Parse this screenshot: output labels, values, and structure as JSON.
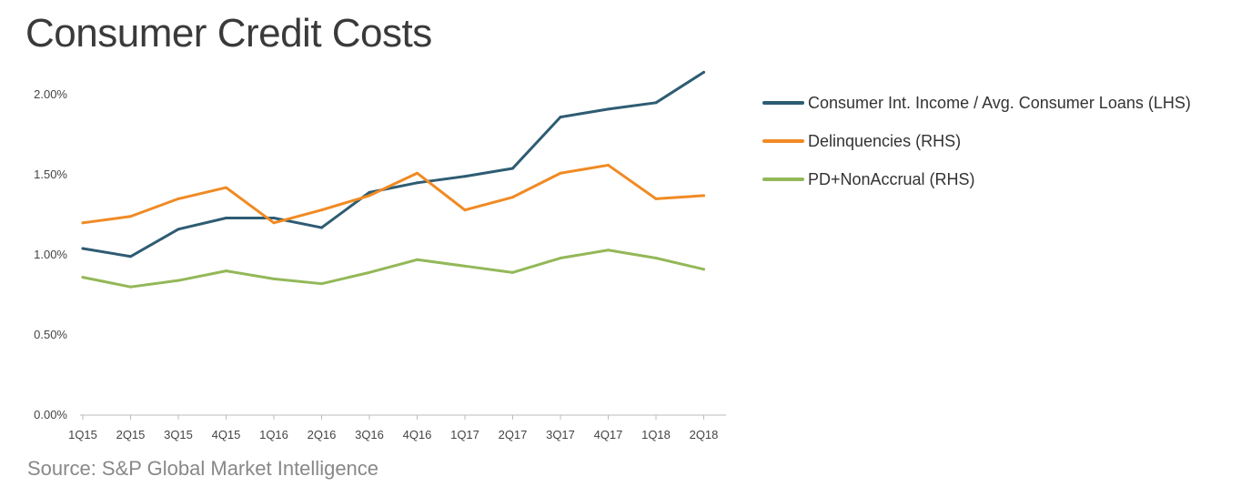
{
  "title": "Consumer Credit Costs",
  "source": "Source: S&P Global Market Intelligence",
  "chart_data": {
    "type": "line",
    "categories": [
      "1Q15",
      "2Q15",
      "3Q15",
      "4Q15",
      "1Q16",
      "2Q16",
      "3Q16",
      "4Q16",
      "1Q17",
      "2Q17",
      "3Q17",
      "4Q17",
      "1Q18",
      "2Q18"
    ],
    "yticks": [
      "0.00%",
      "0.50%",
      "1.00%",
      "1.50%",
      "2.00%"
    ],
    "ylim": [
      0,
      2.2
    ],
    "grid": false,
    "legend_position": "right",
    "series": [
      {
        "name": "Consumer Int. Income / Avg. Consumer Loans (LHS)",
        "color": "#2e5c73",
        "values": [
          1.04,
          0.99,
          1.16,
          1.23,
          1.23,
          1.17,
          1.39,
          1.45,
          1.49,
          1.54,
          1.86,
          1.91,
          1.95,
          2.14
        ]
      },
      {
        "name": "Delinquencies (RHS)",
        "color": "#f08a24",
        "values": [
          1.2,
          1.24,
          1.35,
          1.42,
          1.2,
          1.28,
          1.37,
          1.51,
          1.28,
          1.36,
          1.51,
          1.56,
          1.35,
          1.37
        ]
      },
      {
        "name": "PD+NonAccrual (RHS)",
        "color": "#93b858",
        "values": [
          0.86,
          0.8,
          0.84,
          0.9,
          0.85,
          0.82,
          0.89,
          0.97,
          0.93,
          0.89,
          0.98,
          1.03,
          0.98,
          0.91
        ]
      }
    ]
  }
}
